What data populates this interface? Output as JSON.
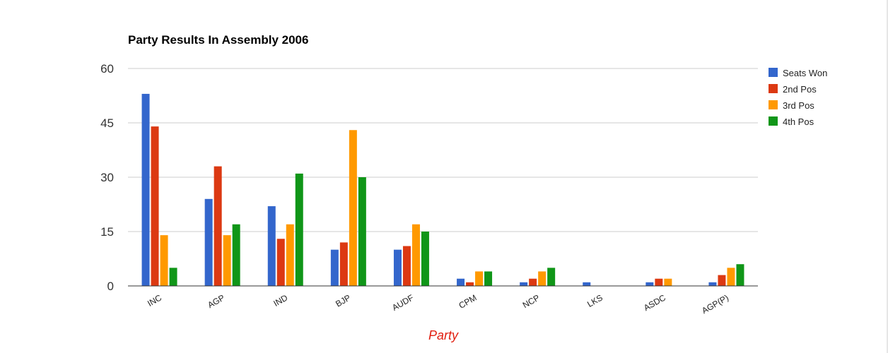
{
  "chart_data": {
    "type": "bar",
    "title": "Party Results In Assembly 2006",
    "xlabel": "Party",
    "ylabel": "",
    "ylim": [
      0,
      60
    ],
    "yticks": [
      0,
      15,
      30,
      45,
      60
    ],
    "grid": true,
    "legend_position": "right",
    "categories": [
      "INC",
      "AGP",
      "IND",
      "BJP",
      "AUDF",
      "CPM",
      "NCP",
      "LKS",
      "ASDC",
      "AGP(P)"
    ],
    "series": [
      {
        "name": "Seats Won",
        "color": "#3366cc",
        "values": [
          53,
          24,
          22,
          10,
          10,
          2,
          1,
          1,
          1,
          1
        ]
      },
      {
        "name": "2nd Pos",
        "color": "#dc3912",
        "values": [
          44,
          33,
          13,
          12,
          11,
          1,
          2,
          0,
          2,
          3
        ]
      },
      {
        "name": "3rd Pos",
        "color": "#ff9900",
        "values": [
          14,
          14,
          17,
          43,
          17,
          4,
          4,
          0,
          2,
          5
        ]
      },
      {
        "name": "4th Pos",
        "color": "#109618",
        "values": [
          5,
          17,
          31,
          30,
          15,
          4,
          5,
          0,
          0,
          6
        ]
      }
    ]
  }
}
